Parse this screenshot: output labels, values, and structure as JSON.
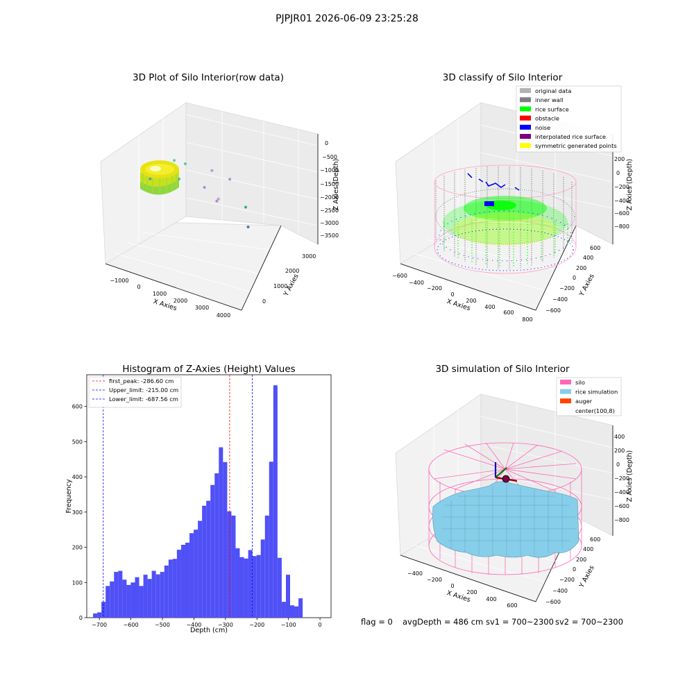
{
  "suptitle": "PJPJR01 2026-06-09 23:25:28",
  "footer": {
    "flag": "flag = 0",
    "avg_depth": "avgDepth = 486 cm",
    "sv1": "sv1 = 700~2300",
    "sv2": "sv2 = 700~2300"
  },
  "colors": {
    "hist_bar": "#5050f7",
    "peak_line": "#ff0000",
    "limit_line": "#0000ff",
    "rice_surface": "#00ff00",
    "noise": "#0000ff",
    "inner_wall": "#808080",
    "silo": "#ff69b4",
    "rice_simulation": "#87ceeb",
    "auger": "#ff4500"
  },
  "chart_data": [
    {
      "type": "scatter",
      "title": "3D Plot of Silo Interior(row data)",
      "xlabel": "X Axies",
      "ylabel": "Y Axies",
      "zlabel": "Z Axies (Depth)",
      "x_ticks": [
        "−1000",
        "0",
        "1000",
        "2000",
        "3000",
        "4000"
      ],
      "y_ticks": [
        "0",
        "1000",
        "2000",
        "3000"
      ],
      "z_ticks": [
        "0",
        "−500",
        "−1000",
        "−1500",
        "−2000",
        "−2500",
        "−3000",
        "−3500"
      ],
      "xlim": [
        -1500,
        4500
      ],
      "ylim": [
        -500,
        3500
      ],
      "zlim": [
        -3600,
        100
      ],
      "outliers": [
        {
          "x": -400,
          "y": 1500,
          "z": -1900
        },
        {
          "x": 400,
          "y": 2100,
          "z": -1500
        },
        {
          "x": 800,
          "y": 2300,
          "z": -1650
        },
        {
          "x": 700,
          "y": 1900,
          "z": -1900
        },
        {
          "x": 1800,
          "y": 2700,
          "z": -1900
        },
        {
          "x": 1600,
          "y": 2400,
          "z": -2300
        },
        {
          "x": 2500,
          "y": 2900,
          "z": -2150
        },
        {
          "x": 2100,
          "y": 2500,
          "z": -2700
        },
        {
          "x": 2150,
          "y": 2550,
          "z": -2650
        },
        {
          "x": 3200,
          "y": 2900,
          "z": -2900
        },
        {
          "x": 3350,
          "y": 2800,
          "z": -3450
        }
      ]
    },
    {
      "type": "scatter",
      "title": "3D classify of Silo Interior",
      "xlabel": "X Axies",
      "ylabel": "Y Axies",
      "zlabel": "Z Axies (Depth)",
      "x_ticks": [
        "−600",
        "−400",
        "−200",
        "0",
        "200",
        "400",
        "600",
        "800"
      ],
      "y_ticks": [
        "−600",
        "−400",
        "−200",
        "0",
        "200",
        "400",
        "600"
      ],
      "z_ticks": [
        "200",
        "0",
        "−200",
        "−400",
        "−600",
        "−800"
      ],
      "xlim": [
        -650,
        850
      ],
      "ylim": [
        -650,
        650
      ],
      "zlim": [
        -900,
        300
      ],
      "legend_position": "upper right",
      "legend": [
        {
          "label": "original data",
          "color": "#b3b3b3"
        },
        {
          "label": "inner wall",
          "color": "#808080"
        },
        {
          "label": "rice surface",
          "color": "#00ff00"
        },
        {
          "label": "obstacle",
          "color": "#ff0000"
        },
        {
          "label": "noise",
          "color": "#0000ff"
        },
        {
          "label": "interpolated rice surface",
          "color": "#800080"
        },
        {
          "label": "symmetric generated points",
          "color": "#ffff00"
        }
      ]
    },
    {
      "type": "bar",
      "title": "Histogram of Z-Axies (Height) Values",
      "xlabel": "Depth (cm)",
      "ylabel": "Frequency",
      "xlim": [
        -740,
        35
      ],
      "ylim": [
        0,
        690
      ],
      "x_ticks": [
        -700,
        -600,
        -500,
        -400,
        -300,
        -200,
        -100,
        0
      ],
      "y_ticks": [
        0,
        100,
        200,
        300,
        400,
        500,
        600
      ],
      "bin_start": -720,
      "bin_width": 13.3,
      "values": [
        12,
        15,
        45,
        90,
        103,
        130,
        133,
        108,
        93,
        100,
        115,
        90,
        122,
        110,
        133,
        123,
        130,
        148,
        165,
        167,
        193,
        207,
        213,
        240,
        250,
        275,
        318,
        332,
        377,
        410,
        484,
        442,
        302,
        290,
        197,
        172,
        168,
        192,
        175,
        178,
        222,
        290,
        443,
        660,
        170,
        45,
        122,
        35,
        32,
        55
      ],
      "vlines": [
        {
          "label": "first_peak: -286.60 cm",
          "x": -286.6,
          "color": "#ff0000"
        },
        {
          "label": "Upper_limit: -215.00 cm",
          "x": -215.0,
          "color": "#0000ff"
        },
        {
          "label": "Lower_limit: -687.56 cm",
          "x": -687.56,
          "color": "#0000ff"
        }
      ],
      "legend_position": "upper left"
    },
    {
      "type": "area",
      "title": "3D simulation of Silo Interior",
      "xlabel": "X Axies",
      "ylabel": "Y Axies",
      "zlabel": "Z Axies (Depth)",
      "x_ticks": [
        "−400",
        "−200",
        "0",
        "200",
        "400",
        "600"
      ],
      "y_ticks": [
        "−600",
        "−400",
        "−200",
        "0",
        "200",
        "400",
        "600"
      ],
      "z_ticks": [
        "400",
        "200",
        "0",
        "−200",
        "−400",
        "−600",
        "−800"
      ],
      "xlim": [
        -550,
        750
      ],
      "ylim": [
        -650,
        650
      ],
      "zlim": [
        -950,
        450
      ],
      "legend_position": "upper right",
      "legend": [
        {
          "label": "silo",
          "color": "#ff69b4"
        },
        {
          "label": "rice simulation",
          "color": "#87ceeb"
        },
        {
          "label": "auger",
          "color": "#ff4500"
        },
        {
          "label": "center(100,8)",
          "color": ""
        }
      ]
    }
  ]
}
